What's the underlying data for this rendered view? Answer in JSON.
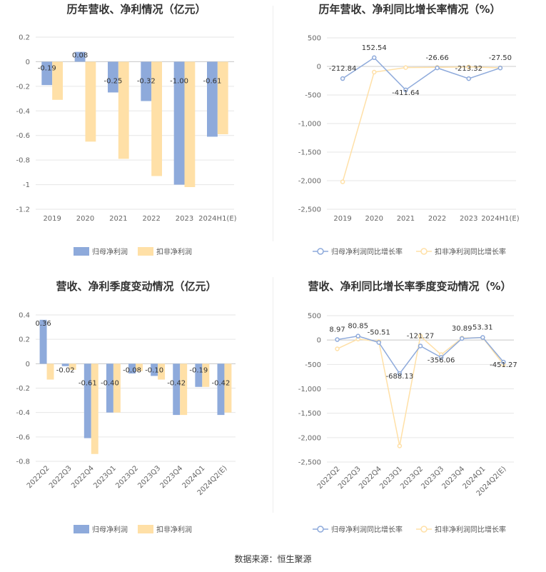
{
  "footer": {
    "label": "数据来源：",
    "source": "恒生聚源"
  },
  "colors": {
    "series1": "#8eaadb",
    "series2": "#ffe0a7",
    "series1_line": "#8eaadb",
    "series2_line": "#ffe0a7",
    "grid": "#e6e6e6",
    "axis": "#cccccc"
  },
  "chart_data": [
    {
      "type": "bar",
      "title": "历年营收、净利情况（亿元）",
      "categories": [
        "2019",
        "2020",
        "2021",
        "2022",
        "2023",
        "2024H1(E)"
      ],
      "ylim": [
        -1.2,
        0.2
      ],
      "yticks": [
        "0.2",
        "0",
        "-0.2",
        "-0.4",
        "-0.6",
        "-0.8",
        "-1",
        "-1.2"
      ],
      "series": [
        {
          "name": "归母净利润",
          "values": [
            -0.19,
            0.08,
            -0.25,
            -0.32,
            -1.0,
            -0.61
          ],
          "labels": [
            "-0.19",
            "0.08",
            "-0.25",
            "-0.32",
            "-1.00",
            "-0.61"
          ]
        },
        {
          "name": "扣非净利润",
          "values": [
            -0.31,
            -0.65,
            -0.79,
            -0.93,
            -1.02,
            -0.59
          ]
        }
      ]
    },
    {
      "type": "line",
      "title": "历年营收、净利同比增长率情况（%）",
      "categories": [
        "2019",
        "2020",
        "2021",
        "2022",
        "2023",
        "2024H1(E)"
      ],
      "ylim": [
        -2500,
        500
      ],
      "yticks": [
        "500",
        "0",
        "-500",
        "-1,000",
        "-1,500",
        "-2,000",
        "-2,500"
      ],
      "series": [
        {
          "name": "归母净利润同比增长率",
          "values": [
            -212.84,
            152.54,
            -411.64,
            -26.66,
            -213.32,
            -27.5
          ],
          "labels": [
            "-212.84",
            "152.54",
            "-411.64",
            "-26.66",
            "-213.32",
            "-27.50"
          ]
        },
        {
          "name": "扣非净利润同比增长率",
          "values": [
            -2020,
            -100,
            -20,
            -15,
            -10,
            -25
          ]
        }
      ]
    },
    {
      "type": "bar",
      "title": "营收、净利季度变动情况（亿元）",
      "categories": [
        "2022Q2",
        "2022Q3",
        "2022Q4",
        "2023Q1",
        "2023Q2",
        "2023Q3",
        "2023Q4",
        "2024Q1",
        "2024Q2(E)"
      ],
      "ylim": [
        -0.8,
        0.4
      ],
      "yticks": [
        "0.4",
        "0.2",
        "0",
        "-0.2",
        "-0.4",
        "-0.6",
        "-0.8"
      ],
      "series": [
        {
          "name": "归母净利润",
          "values": [
            0.36,
            -0.02,
            -0.61,
            -0.4,
            -0.08,
            -0.1,
            -0.42,
            -0.19,
            -0.42
          ],
          "labels": [
            "0.36",
            "-0.02",
            "-0.61",
            "-0.40",
            "-0.08",
            "-0.10",
            "-0.42",
            "-0.19",
            "-0.42"
          ]
        },
        {
          "name": "扣非净利润",
          "values": [
            -0.13,
            -0.05,
            -0.74,
            -0.4,
            -0.06,
            -0.13,
            -0.42,
            -0.19,
            -0.4
          ]
        }
      ]
    },
    {
      "type": "line",
      "title": "营收、净利同比增长率季度变动情况（%）",
      "categories": [
        "2022Q2",
        "2022Q3",
        "2022Q4",
        "2023Q1",
        "2023Q2",
        "2023Q3",
        "2023Q4",
        "2024Q1",
        "2024Q2(E)"
      ],
      "ylim": [
        -2500,
        500
      ],
      "yticks": [
        "500",
        "0",
        "-500",
        "-1,000",
        "-1,500",
        "-2,000",
        "-2,500"
      ],
      "series": [
        {
          "name": "归母净利润同比增长率",
          "values": [
            8.97,
            80.85,
            -50.51,
            -688.13,
            -121.27,
            -356.06,
            30.89,
            53.31,
            -451.27
          ],
          "labels": [
            "8.97",
            "80.85",
            "-50.51",
            "-688.13",
            "-121.27",
            "-356.06",
            "30.89",
            "53.31",
            "-451.27"
          ]
        },
        {
          "name": "扣非净利润同比增长率",
          "values": [
            -180,
            20,
            -30,
            -2170,
            80,
            -300,
            40,
            50,
            -500
          ]
        }
      ]
    }
  ]
}
